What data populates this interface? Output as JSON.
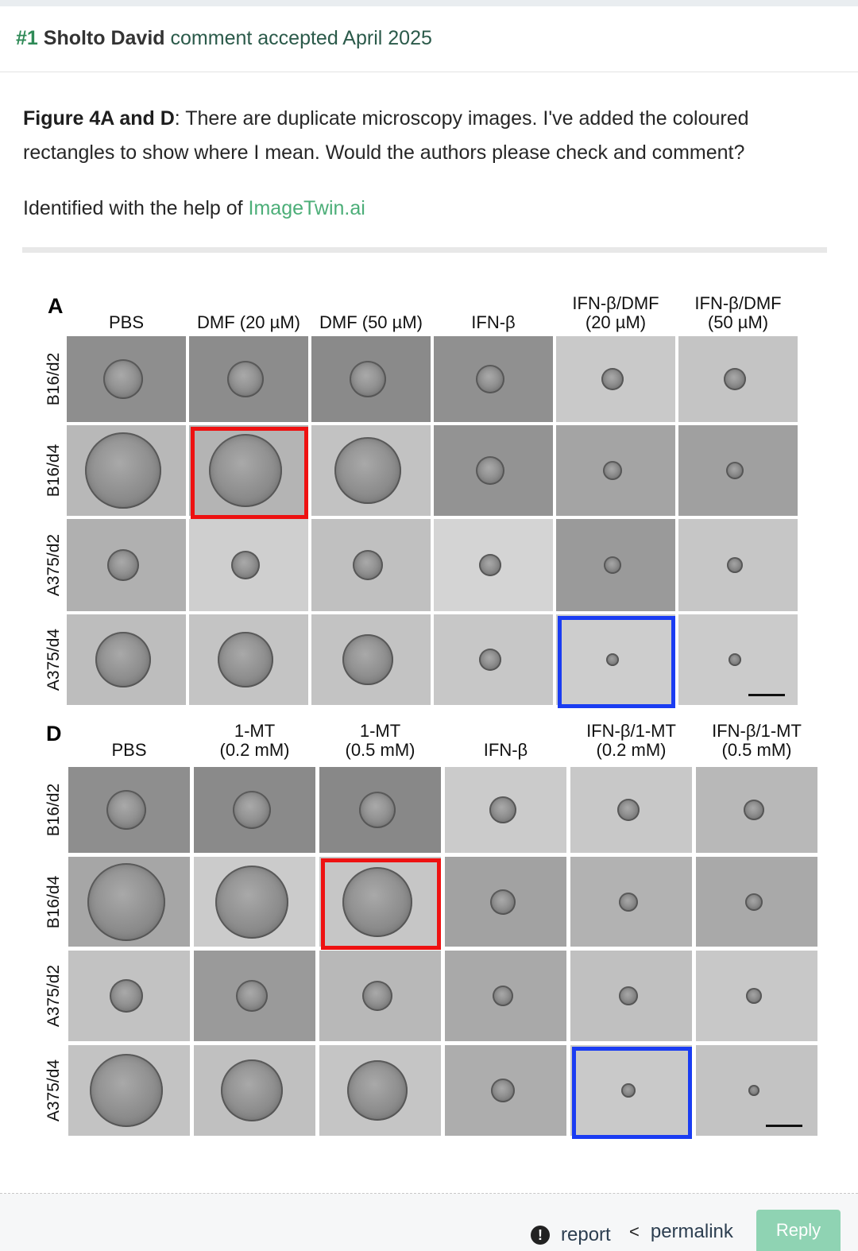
{
  "comment": {
    "number": "#1",
    "author": "Sholto David",
    "status": "comment accepted April 2025",
    "body": {
      "figure_ref": "Figure 4A and D",
      "text": ": There are duplicate microscopy images. I've added the coloured rectangles to show where I mean. Would the authors please check and comment?",
      "identified_prefix": "Identified with the help of ",
      "identified_link": "ImageTwin.ai"
    }
  },
  "figure": {
    "panels": [
      {
        "letter": "A",
        "columns": [
          [
            "PBS"
          ],
          [
            "DMF (20 µM)"
          ],
          [
            "DMF (50 µM)"
          ],
          [
            "IFN-β"
          ],
          [
            "IFN-β/DMF",
            "(20 µM)"
          ],
          [
            "IFN-β/DMF",
            "(50 µM)"
          ]
        ],
        "rows": [
          "B16/d2",
          "B16/d4",
          "A375/d2",
          "A375/d4"
        ],
        "highlights": [
          {
            "row": 1,
            "col": 1,
            "color": "#ee1111"
          },
          {
            "row": 3,
            "col": 4,
            "color": "#1a3cf2"
          }
        ]
      },
      {
        "letter": "D",
        "columns": [
          [
            "PBS"
          ],
          [
            "1-MT",
            "(0.2 mM)"
          ],
          [
            "1-MT",
            "(0.5 mM)"
          ],
          [
            "IFN-β"
          ],
          [
            "IFN-β/1-MT",
            "(0.2 mM)"
          ],
          [
            "IFN-β/1-MT",
            "(0.5 mM)"
          ]
        ],
        "rows": [
          "B16/d2",
          "B16/d4",
          "A375/d2",
          "A375/d4"
        ],
        "highlights": [
          {
            "row": 1,
            "col": 2,
            "color": "#ee1111"
          },
          {
            "row": 3,
            "col": 4,
            "color": "#1a3cf2"
          }
        ]
      }
    ]
  },
  "actions": {
    "report": "report",
    "permalink": "permalink",
    "reply": "Reply"
  },
  "icons": {
    "report": "report-exclamation-icon",
    "permalink": "share-icon"
  }
}
